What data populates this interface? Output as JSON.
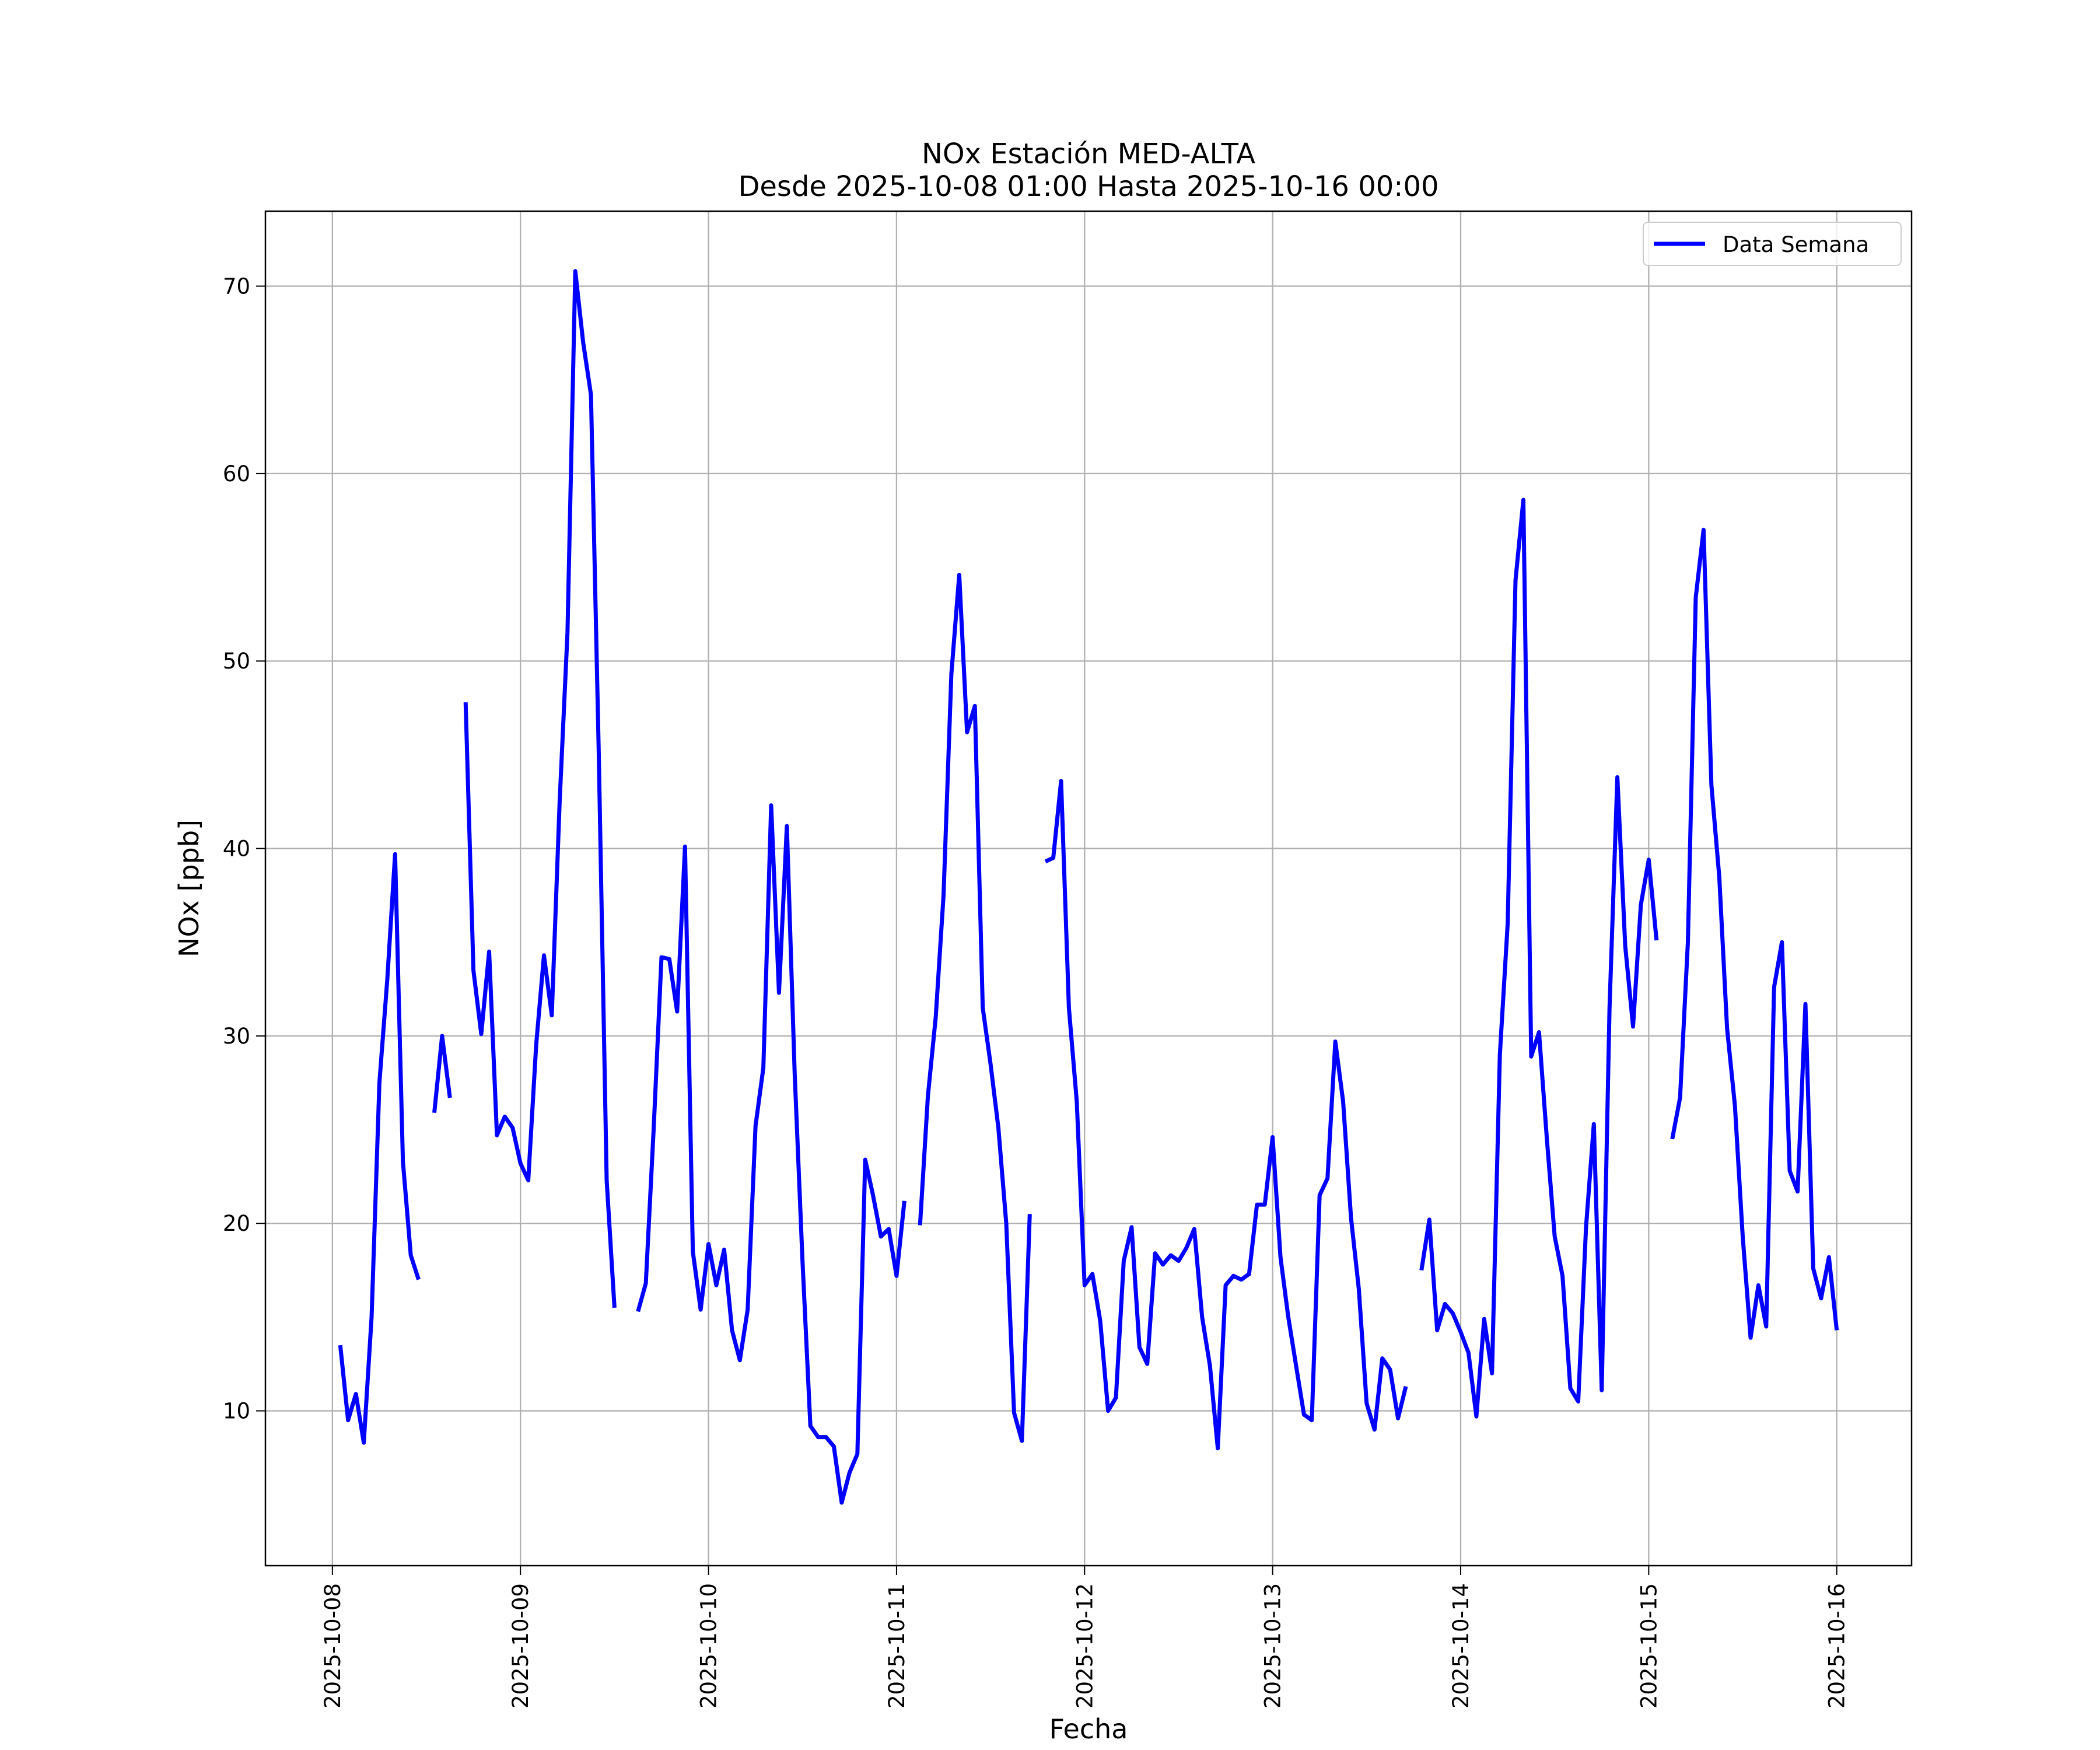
{
  "chart_data": {
    "type": "line",
    "title": "NOx Estación MED-ALTA",
    "subtitle": "Desde 2025-10-08 01:00 Hasta 2025-10-16 00:00",
    "xlabel": "Fecha",
    "ylabel": "NOx [ppb]",
    "legend": "upper right",
    "grid": true,
    "xlim": [
      "2025-10-07 15:27",
      "2025-10-16 09:33"
    ],
    "xticks": [
      "2025-10-08",
      "2025-10-09",
      "2025-10-10",
      "2025-10-11",
      "2025-10-12",
      "2025-10-13",
      "2025-10-14",
      "2025-10-15",
      "2025-10-16"
    ],
    "ylim": [
      1.74,
      74.0
    ],
    "yticks": [
      10,
      20,
      30,
      40,
      50,
      60,
      70
    ],
    "x": [
      "2025-10-08 01:00",
      "2025-10-08 02:00",
      "2025-10-08 03:00",
      "2025-10-08 04:00",
      "2025-10-08 05:00",
      "2025-10-08 06:00",
      "2025-10-08 07:00",
      "2025-10-08 08:00",
      "2025-10-08 09:00",
      "2025-10-08 10:00",
      "2025-10-08 11:00",
      "2025-10-08 12:00",
      "2025-10-08 13:00",
      "2025-10-08 14:00",
      "2025-10-08 15:00",
      "2025-10-08 16:00",
      "2025-10-08 17:00",
      "2025-10-08 18:00",
      "2025-10-08 19:00",
      "2025-10-08 20:00",
      "2025-10-08 21:00",
      "2025-10-08 22:00",
      "2025-10-08 23:00",
      "2025-10-09 00:00",
      "2025-10-09 01:00",
      "2025-10-09 02:00",
      "2025-10-09 03:00",
      "2025-10-09 04:00",
      "2025-10-09 05:00",
      "2025-10-09 06:00",
      "2025-10-09 07:00",
      "2025-10-09 08:00",
      "2025-10-09 09:00",
      "2025-10-09 10:00",
      "2025-10-09 11:00",
      "2025-10-09 12:00",
      "2025-10-09 13:00",
      "2025-10-09 14:00",
      "2025-10-09 15:00",
      "2025-10-09 16:00",
      "2025-10-09 17:00",
      "2025-10-09 18:00",
      "2025-10-09 19:00",
      "2025-10-09 20:00",
      "2025-10-09 21:00",
      "2025-10-09 22:00",
      "2025-10-09 23:00",
      "2025-10-10 00:00",
      "2025-10-10 01:00",
      "2025-10-10 02:00",
      "2025-10-10 03:00",
      "2025-10-10 04:00",
      "2025-10-10 05:00",
      "2025-10-10 06:00",
      "2025-10-10 07:00",
      "2025-10-10 08:00",
      "2025-10-10 09:00",
      "2025-10-10 10:00",
      "2025-10-10 11:00",
      "2025-10-10 12:00",
      "2025-10-10 13:00",
      "2025-10-10 14:00",
      "2025-10-10 15:00",
      "2025-10-10 16:00",
      "2025-10-10 17:00",
      "2025-10-10 18:00",
      "2025-10-10 19:00",
      "2025-10-10 20:00",
      "2025-10-10 21:00",
      "2025-10-10 22:00",
      "2025-10-10 23:00",
      "2025-10-11 00:00",
      "2025-10-11 01:00",
      "2025-10-11 02:00",
      "2025-10-11 03:00",
      "2025-10-11 04:00",
      "2025-10-11 05:00",
      "2025-10-11 06:00",
      "2025-10-11 07:00",
      "2025-10-11 08:00",
      "2025-10-11 09:00",
      "2025-10-11 10:00",
      "2025-10-11 11:00",
      "2025-10-11 12:00",
      "2025-10-11 13:00",
      "2025-10-11 14:00",
      "2025-10-11 15:00",
      "2025-10-11 16:00",
      "2025-10-11 17:00",
      "2025-10-11 18:00",
      "2025-10-11 19:00",
      "2025-10-11 20:00",
      "2025-10-11 21:00",
      "2025-10-11 22:00",
      "2025-10-11 23:00",
      "2025-10-12 00:00",
      "2025-10-12 01:00",
      "2025-10-12 02:00",
      "2025-10-12 03:00",
      "2025-10-12 04:00",
      "2025-10-12 05:00",
      "2025-10-12 06:00",
      "2025-10-12 07:00",
      "2025-10-12 08:00",
      "2025-10-12 09:00",
      "2025-10-12 10:00",
      "2025-10-12 11:00",
      "2025-10-12 12:00",
      "2025-10-12 13:00",
      "2025-10-12 14:00",
      "2025-10-12 15:00",
      "2025-10-12 16:00",
      "2025-10-12 17:00",
      "2025-10-12 18:00",
      "2025-10-12 19:00",
      "2025-10-12 20:00",
      "2025-10-12 21:00",
      "2025-10-12 22:00",
      "2025-10-12 23:00",
      "2025-10-13 00:00",
      "2025-10-13 01:00",
      "2025-10-13 02:00",
      "2025-10-13 03:00",
      "2025-10-13 04:00",
      "2025-10-13 05:00",
      "2025-10-13 06:00",
      "2025-10-13 07:00",
      "2025-10-13 08:00",
      "2025-10-13 09:00",
      "2025-10-13 10:00",
      "2025-10-13 11:00",
      "2025-10-13 12:00",
      "2025-10-13 13:00",
      "2025-10-13 14:00",
      "2025-10-13 15:00",
      "2025-10-13 16:00",
      "2025-10-13 17:00",
      "2025-10-13 18:00",
      "2025-10-13 19:00",
      "2025-10-13 20:00",
      "2025-10-13 21:00",
      "2025-10-13 22:00",
      "2025-10-13 23:00",
      "2025-10-14 00:00",
      "2025-10-14 01:00",
      "2025-10-14 02:00",
      "2025-10-14 03:00",
      "2025-10-14 04:00",
      "2025-10-14 05:00",
      "2025-10-14 06:00",
      "2025-10-14 07:00",
      "2025-10-14 08:00",
      "2025-10-14 09:00",
      "2025-10-14 10:00",
      "2025-10-14 11:00",
      "2025-10-14 12:00",
      "2025-10-14 13:00",
      "2025-10-14 14:00",
      "2025-10-14 15:00",
      "2025-10-14 16:00",
      "2025-10-14 17:00",
      "2025-10-14 18:00",
      "2025-10-14 19:00",
      "2025-10-14 20:00",
      "2025-10-14 21:00",
      "2025-10-14 22:00",
      "2025-10-14 23:00",
      "2025-10-15 00:00",
      "2025-10-15 01:00",
      "2025-10-15 02:00",
      "2025-10-15 03:00",
      "2025-10-15 04:00",
      "2025-10-15 05:00",
      "2025-10-15 06:00",
      "2025-10-15 07:00",
      "2025-10-15 08:00",
      "2025-10-15 09:00",
      "2025-10-15 10:00",
      "2025-10-15 11:00",
      "2025-10-15 12:00",
      "2025-10-15 13:00",
      "2025-10-15 14:00",
      "2025-10-15 15:00",
      "2025-10-15 16:00",
      "2025-10-15 17:00",
      "2025-10-15 18:00",
      "2025-10-15 19:00",
      "2025-10-15 20:00",
      "2025-10-15 21:00",
      "2025-10-15 22:00",
      "2025-10-15 23:00",
      "2025-10-16 00:00"
    ],
    "series": [
      {
        "name": "Data Semana",
        "color": "#0000ff",
        "values": [
          13.5,
          9.5,
          10.9,
          8.3,
          15,
          27.5,
          33,
          39.7,
          23.3,
          18.3,
          17.0,
          null,
          25.9,
          30.0,
          26.7,
          null,
          47.8,
          33.5,
          30.1,
          34.5,
          24.7,
          25.7,
          25.1,
          23.2,
          22.3,
          29.5,
          34.3,
          31.1,
          42.5,
          51.5,
          70.8,
          67,
          64.2,
          45,
          22.3,
          15.5,
          null,
          null,
          15.3,
          16.8,
          25,
          34.2,
          34.1,
          31.3,
          40.1,
          18.5,
          15.4,
          18.9,
          16.7,
          18.6,
          14.3,
          12.7,
          15.4,
          25.2,
          28.3,
          42.3,
          32.3,
          41.2,
          28,
          18,
          9.2,
          8.6,
          8.6,
          8.1,
          5.1,
          6.7,
          7.7,
          23.4,
          21.5,
          19.3,
          19.7,
          17.2,
          21.2,
          null,
          19.9,
          26.8,
          31,
          37.5,
          49.3,
          54.6,
          46.2,
          47.6,
          31.5,
          28.5,
          25.1,
          20,
          9.9,
          8.4,
          20.5,
          null,
          39.3,
          39.5,
          43.6,
          31.5,
          26.5,
          16.7,
          17.3,
          14.8,
          10,
          10.7,
          18,
          19.8,
          13.4,
          12.5,
          18.4,
          17.8,
          18.3,
          18.0,
          18.7,
          19.7,
          15,
          12.4,
          8.0,
          16.7,
          17.2,
          17.0,
          17.3,
          21.0,
          21.0,
          24.6,
          18.2,
          15,
          12.4,
          9.8,
          9.5,
          21.5,
          22.4,
          29.7,
          26.5,
          20.3,
          16.5,
          10.4,
          9.0,
          12.8,
          12.2,
          9.6,
          11.3,
          null,
          17.5,
          20.2,
          14.3,
          15.7,
          15.2,
          14.2,
          13.1,
          9.7,
          14.9,
          12.0,
          29,
          36,
          54.3,
          58.6,
          28.9,
          30.2,
          24.5,
          19.3,
          17.2,
          11.2,
          10.5,
          19.8,
          25.3,
          11.1,
          31.5,
          43.8,
          34.8,
          30.5,
          37,
          39.4,
          35.1,
          null,
          24.5,
          26.7,
          35,
          53.4,
          57,
          43.4,
          38.5,
          30.4,
          26.3,
          19.3,
          13.9,
          16.7,
          14.5,
          32.6,
          35,
          22.8,
          21.7,
          31.7,
          17.6,
          16,
          18.2,
          14.3
        ]
      }
    ]
  }
}
